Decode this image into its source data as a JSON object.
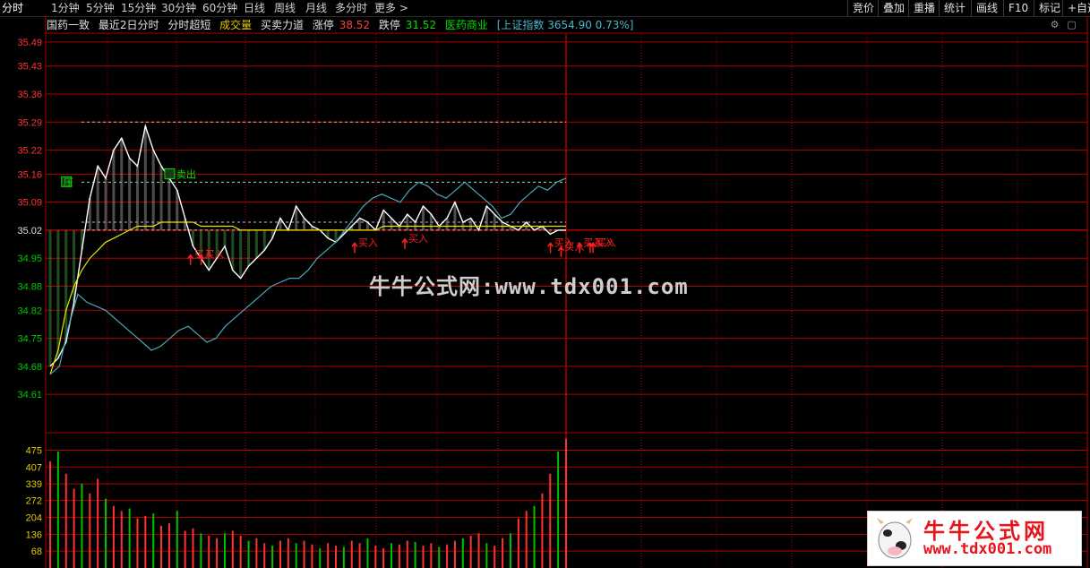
{
  "toolbar": {
    "tabs": [
      "分时",
      "1分钟",
      "5分钟",
      "15分钟",
      "30分钟",
      "60分钟",
      "日线",
      "周线",
      "月线",
      "多分时",
      "更多"
    ],
    "active_tab": "分时",
    "right_buttons": [
      "竞价",
      "叠加",
      "重播",
      "统计",
      "画线",
      "F10",
      "标记",
      "+自选"
    ]
  },
  "info": {
    "stock": "国药一致",
    "items": [
      "最近2日分时",
      "分时超短",
      "成交量",
      "买卖力道"
    ],
    "limit_up_label": "涨停",
    "limit_up_value": "38.52",
    "limit_down_label": "跌停",
    "limit_down_value": "31.52",
    "sector": "医药商业",
    "index_text": "[上证指数 3654.90 0.73%]"
  },
  "colors": {
    "price_up": "#ff3232",
    "price_down": "#00c800",
    "grid": "#b00000",
    "price_line": "#ffffff",
    "avg_line": "#e6e600",
    "index_line": "#48a8b8",
    "volume_up": "#ff3232",
    "volume_down": "#00c000",
    "signal": "#ff2020",
    "label_green": "#00e000"
  },
  "chart_data": {
    "type": "line",
    "price_axis": {
      "ticks": [
        35.49,
        35.43,
        35.36,
        35.29,
        35.22,
        35.16,
        35.09,
        35.02,
        34.95,
        34.88,
        34.82,
        34.75,
        34.68,
        34.61
      ],
      "ylim": [
        34.57,
        35.51
      ],
      "prev_close": 35.02
    },
    "volume_axis": {
      "ticks": [
        475,
        407,
        339,
        272,
        204,
        136,
        68
      ],
      "ylim": [
        0,
        520
      ]
    },
    "reference_levels": [
      35.29,
      35.14,
      35.04,
      35.02
    ],
    "series": [
      {
        "values": [
          34.68,
          34.7,
          34.74,
          34.84,
          34.97,
          35.1,
          35.18,
          35.15,
          35.22,
          35.25,
          35.2,
          35.18,
          35.28,
          35.22,
          35.18,
          35.15,
          35.12,
          35.05,
          34.98,
          34.95,
          34.92,
          34.95,
          34.98,
          34.92,
          34.9,
          34.93,
          34.95,
          34.97,
          35.0,
          35.05,
          35.02,
          35.08,
          35.05,
          35.03,
          35.02,
          35.0,
          34.99,
          35.01,
          35.03,
          35.05,
          35.04,
          35.02,
          35.07,
          35.05,
          35.03,
          35.06,
          35.04,
          35.08,
          35.06,
          35.03,
          35.05,
          35.09,
          35.04,
          35.05,
          35.02,
          35.08,
          35.06,
          35.04,
          35.03,
          35.02,
          35.04,
          35.02,
          35.03,
          35.01,
          35.02,
          35.02
        ]
      },
      {
        "values": [
          34.66,
          34.72,
          34.82,
          34.88,
          34.92,
          34.95,
          34.97,
          34.99,
          35.0,
          35.01,
          35.02,
          35.03,
          35.03,
          35.03,
          35.04,
          35.04,
          35.04,
          35.04,
          35.04,
          35.03,
          35.03,
          35.03,
          35.03,
          35.03,
          35.02,
          35.02,
          35.02,
          35.02,
          35.02,
          35.02,
          35.02,
          35.02,
          35.02,
          35.02,
          35.02,
          35.02,
          35.02,
          35.02,
          35.02,
          35.02,
          35.02,
          35.02,
          35.03,
          35.03,
          35.03,
          35.03,
          35.03,
          35.03,
          35.03,
          35.03,
          35.03,
          35.03,
          35.03,
          35.03,
          35.03,
          35.03,
          35.03,
          35.03,
          35.03,
          35.03,
          35.03,
          35.03,
          35.03,
          35.03,
          35.03,
          35.03
        ]
      },
      {
        "values": [
          34.66,
          34.68,
          34.78,
          34.86,
          34.84,
          34.83,
          34.82,
          34.8,
          34.78,
          34.76,
          34.74,
          34.72,
          34.73,
          34.75,
          34.77,
          34.78,
          34.76,
          34.74,
          34.75,
          34.78,
          34.8,
          34.82,
          34.84,
          34.86,
          34.88,
          34.89,
          34.9,
          34.9,
          34.92,
          34.95,
          34.97,
          34.99,
          35.02,
          35.05,
          35.08,
          35.1,
          35.11,
          35.1,
          35.09,
          35.12,
          35.14,
          35.13,
          35.11,
          35.1,
          35.12,
          35.14,
          35.12,
          35.1,
          35.08,
          35.05,
          35.06,
          35.09,
          35.11,
          35.13,
          35.12,
          35.14,
          35.15
        ]
      }
    ],
    "volume": [
      430,
      470,
      380,
      320,
      340,
      300,
      360,
      280,
      250,
      230,
      240,
      200,
      210,
      220,
      170,
      180,
      230,
      150,
      160,
      140,
      130,
      120,
      140,
      150,
      130,
      110,
      120,
      100,
      90,
      110,
      120,
      100,
      110,
      95,
      80,
      100,
      90,
      85,
      110,
      100,
      120,
      90,
      80,
      100,
      95,
      110,
      105,
      90,
      100,
      85,
      95,
      110,
      120,
      130,
      140,
      100,
      90,
      120,
      140,
      200,
      230,
      250,
      300,
      380,
      470,
      520
    ],
    "signals": [
      {
        "label": "压",
        "price": 35.14,
        "color": "green"
      },
      {
        "label": "卖出",
        "price": 35.16,
        "color": "green"
      },
      {
        "label": "买入",
        "price": 34.96,
        "color": "red"
      },
      {
        "label": "买入",
        "price": 34.96,
        "color": "red"
      },
      {
        "label": "买入",
        "price": 34.99,
        "color": "red"
      },
      {
        "label": "买入",
        "price": 35.0,
        "color": "red"
      },
      {
        "label": "买入",
        "price": 34.99,
        "color": "red"
      },
      {
        "label": "买入",
        "price": 34.98,
        "color": "red"
      },
      {
        "label": "买入",
        "price": 34.99,
        "color": "red"
      },
      {
        "label": "买入",
        "price": 34.99,
        "color": "red"
      },
      {
        "label": "买入",
        "price": 34.99,
        "color": "red"
      }
    ]
  },
  "watermark": "牛牛公式网:www.tdx001.com",
  "logo": {
    "title": "牛牛公式网",
    "url": "www.tdx001.com"
  }
}
